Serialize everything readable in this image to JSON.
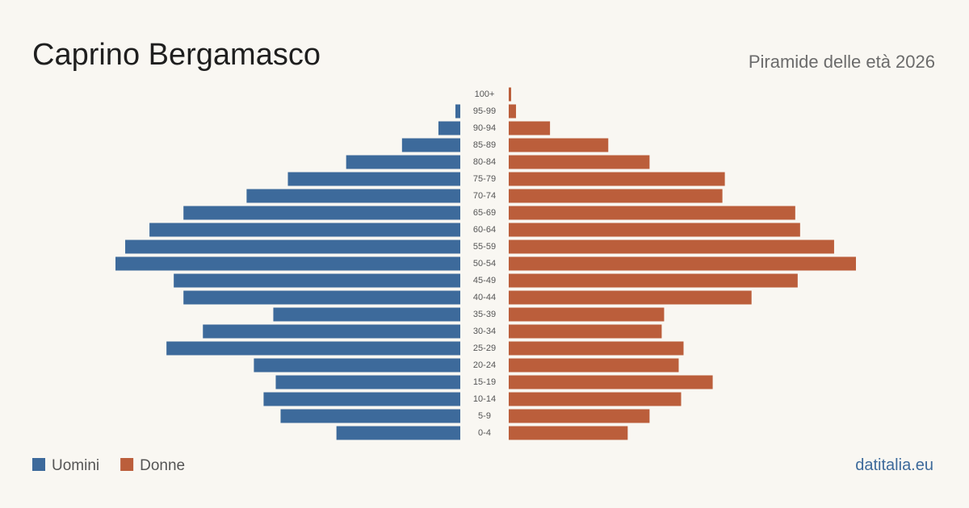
{
  "chart_data": {
    "type": "pyramid",
    "title": "Caprino Bergamasco",
    "subtitle": "Piramide delle età 2026",
    "source": "datitalia.eu",
    "categories": [
      "0-4",
      "5-9",
      "10-14",
      "15-19",
      "20-24",
      "25-29",
      "30-34",
      "35-39",
      "40-44",
      "45-49",
      "50-54",
      "55-59",
      "60-64",
      "65-69",
      "70-74",
      "75-79",
      "80-84",
      "85-89",
      "90-94",
      "95-99",
      "100+"
    ],
    "series": [
      {
        "name": "Uomini",
        "color": "#3d6a9b",
        "values": [
          51,
          74,
          81,
          76,
          85,
          121,
          106,
          77,
          114,
          118,
          142,
          138,
          128,
          114,
          88,
          71,
          47,
          24,
          9,
          2,
          0
        ]
      },
      {
        "name": "Donne",
        "color": "#bb5e3b",
        "values": [
          49,
          58,
          71,
          84,
          70,
          72,
          63,
          64,
          100,
          119,
          143,
          134,
          120,
          118,
          88,
          89,
          58,
          41,
          17,
          3,
          1
        ]
      }
    ]
  }
}
